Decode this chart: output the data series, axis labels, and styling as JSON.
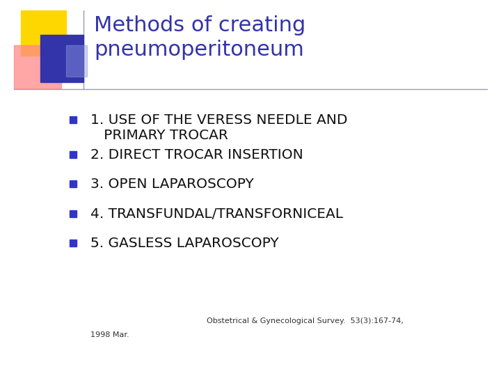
{
  "title_line1": "Methods of creating",
  "title_line2": "pneumoperitoneum",
  "title_color": "#3333AA",
  "background_color": "#FFFFFF",
  "bullet_color": "#111111",
  "bullet_marker_color": "#3333CC",
  "bullet_items_line1": [
    "1. USE OF THE VERESS NEEDLE AND",
    "2. DIRECT TROCAR INSERTION",
    "3. OPEN LAPAROSCOPY",
    "4. TRANSFUNDAL/TRANSFORNICEAL",
    "5. GASLESS LAPAROSCOPY"
  ],
  "bullet_item1_line2": "   PRIMARY TROCAR",
  "footnote_line1": "Obstetrical & Gynecological Survey.  53(3):167-74,",
  "footnote_line2": "1998 Mar.",
  "footnote_color": "#333333",
  "separator_color": "#9999BB",
  "logo_yellow": "#FFD700",
  "logo_red": "#FF8888",
  "logo_blue_dark": "#3333AA",
  "logo_blue_light": "#8899DD"
}
